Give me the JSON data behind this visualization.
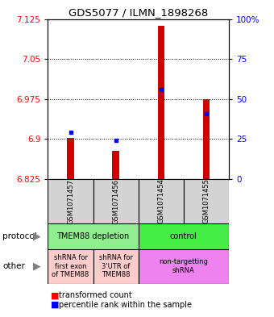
{
  "title": "GDS5077 / ILMN_1898268",
  "samples": [
    "GSM1071457",
    "GSM1071456",
    "GSM1071454",
    "GSM1071455"
  ],
  "red_bottoms": [
    6.825,
    6.825,
    6.825,
    6.825
  ],
  "red_tops": [
    6.902,
    6.878,
    7.112,
    6.975
  ],
  "blue_values": [
    6.912,
    6.898,
    6.993,
    6.948
  ],
  "ylim": [
    6.825,
    7.125
  ],
  "yticks_left": [
    6.825,
    6.9,
    6.975,
    7.05,
    7.125
  ],
  "yticks_right_pct": [
    0,
    25,
    50,
    75,
    100
  ],
  "ytick_right_labels": [
    "0",
    "25",
    "50",
    "75",
    "100%"
  ],
  "protocol_groups": [
    {
      "label": "TMEM88 depletion",
      "cols": [
        0,
        1
      ],
      "color": "#90EE90"
    },
    {
      "label": "control",
      "cols": [
        2,
        3
      ],
      "color": "#44EE44"
    }
  ],
  "other_groups": [
    {
      "label": "shRNA for\nfirst exon\nof TMEM88",
      "cols": [
        0
      ],
      "color": "#FFCCCC"
    },
    {
      "label": "shRNA for\n3'UTR of\nTMEM88",
      "cols": [
        1
      ],
      "color": "#FFCCCC"
    },
    {
      "label": "non-targetting\nshRNA",
      "cols": [
        2,
        3
      ],
      "color": "#EE82EE"
    }
  ],
  "legend_red": "transformed count",
  "legend_blue": "percentile rank within the sample",
  "bar_width": 0.15,
  "background_color": "#ffffff"
}
